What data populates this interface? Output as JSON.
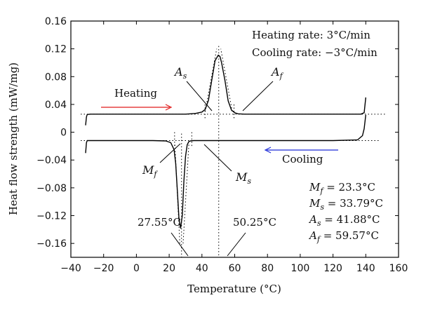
{
  "chart_data": {
    "type": "line",
    "xlabel": "Temperature (°C)",
    "ylabel": "Heat flow strength (mW/mg)",
    "xlim": [
      -40,
      160
    ],
    "ylim": [
      -0.18,
      0.16
    ],
    "x_ticks": [
      "−40",
      "−20",
      "0",
      "20",
      "40",
      "60",
      "80",
      "100",
      "120",
      "140",
      "160"
    ],
    "x_tick_values": [
      -40,
      -20,
      0,
      20,
      40,
      60,
      80,
      100,
      120,
      140,
      160
    ],
    "y_ticks": [
      "−0.16",
      "−0.12",
      "−0.08",
      "−0.04",
      "0",
      "0.04",
      "0.08",
      "0.12",
      "0.16"
    ],
    "y_tick_values": [
      -0.16,
      -0.12,
      -0.08,
      -0.04,
      0,
      0.04,
      0.08,
      0.12,
      0.16
    ],
    "series": [
      {
        "x": [
          -31,
          -30.5,
          -30,
          -28,
          -20,
          0,
          20,
          30,
          36,
          40,
          42,
          44,
          46,
          48,
          50,
          51,
          52,
          54,
          56,
          58,
          60,
          62,
          66,
          80,
          100,
          120,
          130,
          134,
          137,
          139,
          140
        ],
        "y": [
          0.01,
          0.022,
          0.0255,
          0.026,
          0.026,
          0.026,
          0.026,
          0.026,
          0.027,
          0.029,
          0.033,
          0.046,
          0.075,
          0.103,
          0.111,
          0.109,
          0.1,
          0.075,
          0.045,
          0.032,
          0.028,
          0.0265,
          0.026,
          0.026,
          0.026,
          0.026,
          0.026,
          0.026,
          0.026,
          0.028,
          0.05
        ],
        "color": "#000000"
      },
      {
        "x": [
          -31,
          -30.5,
          -30,
          -20,
          0,
          10,
          18,
          21,
          23,
          24,
          25,
          26,
          27,
          28,
          29,
          30,
          31,
          32,
          33,
          35,
          40,
          60,
          80,
          100,
          120,
          135,
          138,
          139,
          140
        ],
        "y": [
          -0.03,
          -0.015,
          -0.012,
          -0.012,
          -0.012,
          -0.012,
          -0.0125,
          -0.015,
          -0.025,
          -0.045,
          -0.085,
          -0.125,
          -0.138,
          -0.12,
          -0.07,
          -0.035,
          -0.018,
          -0.0135,
          -0.0125,
          -0.012,
          -0.012,
          -0.012,
          -0.012,
          -0.012,
          -0.012,
          -0.011,
          -0.005,
          0.005,
          0.025
        ],
        "color": "#000000"
      }
    ],
    "annotations": {
      "heating_rate": "Heating rate: 3°C/min",
      "cooling_rate": "Cooling rate: −3°C/min",
      "heating_label": "Heating",
      "cooling_label": "Cooling",
      "heating_color": "#e11b1b",
      "cooling_color": "#1c2bd8",
      "as": "A",
      "as_sub": "s",
      "af": "A",
      "af_sub": "f",
      "mf": "M",
      "mf_sub": "f",
      "ms": "M",
      "ms_sub": "s",
      "peak_cool": "27.55°C",
      "peak_heat": "50.25°C",
      "values": [
        {
          "sym": "M",
          "sub": "f",
          "text": " = 23.3°C"
        },
        {
          "sym": "M",
          "sub": "s",
          "text": " = 33.79°C"
        },
        {
          "sym": "A",
          "sub": "s",
          "text": " = 41.88°C"
        },
        {
          "sym": "A",
          "sub": "f",
          "text": " = 59.57°C"
        }
      ]
    }
  }
}
